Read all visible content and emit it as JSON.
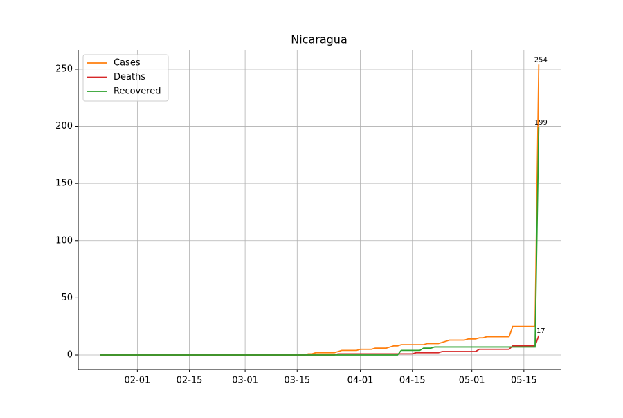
{
  "chart_data": {
    "type": "line",
    "title": "Nicaragua",
    "x": [
      "01-22",
      "01-23",
      "01-24",
      "01-25",
      "01-26",
      "01-27",
      "01-28",
      "01-29",
      "01-30",
      "01-31",
      "02-01",
      "02-02",
      "02-03",
      "02-04",
      "02-05",
      "02-06",
      "02-07",
      "02-08",
      "02-09",
      "02-10",
      "02-11",
      "02-12",
      "02-13",
      "02-14",
      "02-15",
      "02-16",
      "02-17",
      "02-18",
      "02-19",
      "02-20",
      "02-21",
      "02-22",
      "02-23",
      "02-24",
      "02-25",
      "02-26",
      "02-27",
      "02-28",
      "02-29",
      "03-01",
      "03-02",
      "03-03",
      "03-04",
      "03-05",
      "03-06",
      "03-07",
      "03-08",
      "03-09",
      "03-10",
      "03-11",
      "03-12",
      "03-13",
      "03-14",
      "03-15",
      "03-16",
      "03-17",
      "03-18",
      "03-19",
      "03-20",
      "03-21",
      "03-22",
      "03-23",
      "03-24",
      "03-25",
      "03-26",
      "03-27",
      "03-28",
      "03-29",
      "03-30",
      "03-31",
      "04-01",
      "04-02",
      "04-03",
      "04-04",
      "04-05",
      "04-06",
      "04-07",
      "04-08",
      "04-09",
      "04-10",
      "04-11",
      "04-12",
      "04-13",
      "04-14",
      "04-15",
      "04-16",
      "04-17",
      "04-18",
      "04-19",
      "04-20",
      "04-21",
      "04-22",
      "04-23",
      "04-24",
      "04-25",
      "04-26",
      "04-27",
      "04-28",
      "04-29",
      "04-30",
      "05-01",
      "05-02",
      "05-03",
      "05-04",
      "05-05",
      "05-06",
      "05-07",
      "05-08",
      "05-09",
      "05-10",
      "05-11",
      "05-12",
      "05-13",
      "05-14",
      "05-15",
      "05-16",
      "05-17",
      "05-18",
      "05-19"
    ],
    "series": [
      {
        "name": "Cases",
        "color": "#ff7f0e",
        "values": [
          0,
          0,
          0,
          0,
          0,
          0,
          0,
          0,
          0,
          0,
          0,
          0,
          0,
          0,
          0,
          0,
          0,
          0,
          0,
          0,
          0,
          0,
          0,
          0,
          0,
          0,
          0,
          0,
          0,
          0,
          0,
          0,
          0,
          0,
          0,
          0,
          0,
          0,
          0,
          0,
          0,
          0,
          0,
          0,
          0,
          0,
          0,
          0,
          0,
          0,
          0,
          0,
          0,
          0,
          0,
          0,
          1,
          1,
          2,
          2,
          2,
          2,
          2,
          2,
          3,
          4,
          4,
          4,
          4,
          4,
          5,
          5,
          5,
          5,
          6,
          6,
          6,
          6,
          7,
          8,
          8,
          9,
          9,
          9,
          9,
          9,
          9,
          9,
          10,
          10,
          10,
          10,
          11,
          12,
          13,
          13,
          13,
          13,
          13,
          14,
          14,
          14,
          15,
          15,
          16,
          16,
          16,
          16,
          16,
          16,
          16,
          25,
          25,
          25,
          25,
          25,
          25,
          25,
          254
        ]
      },
      {
        "name": "Deaths",
        "color": "#d62728",
        "values": [
          0,
          0,
          0,
          0,
          0,
          0,
          0,
          0,
          0,
          0,
          0,
          0,
          0,
          0,
          0,
          0,
          0,
          0,
          0,
          0,
          0,
          0,
          0,
          0,
          0,
          0,
          0,
          0,
          0,
          0,
          0,
          0,
          0,
          0,
          0,
          0,
          0,
          0,
          0,
          0,
          0,
          0,
          0,
          0,
          0,
          0,
          0,
          0,
          0,
          0,
          0,
          0,
          0,
          0,
          0,
          0,
          0,
          0,
          0,
          0,
          0,
          0,
          0,
          0,
          1,
          1,
          1,
          1,
          1,
          1,
          1,
          1,
          1,
          1,
          1,
          1,
          1,
          1,
          1,
          1,
          1,
          1,
          1,
          1,
          1,
          2,
          2,
          2,
          2,
          2,
          2,
          2,
          3,
          3,
          3,
          3,
          3,
          3,
          3,
          3,
          3,
          3,
          5,
          5,
          5,
          5,
          5,
          5,
          5,
          5,
          5,
          8,
          8,
          8,
          8,
          8,
          8,
          8,
          17
        ]
      },
      {
        "name": "Recovered",
        "color": "#2ca02c",
        "values": [
          0,
          0,
          0,
          0,
          0,
          0,
          0,
          0,
          0,
          0,
          0,
          0,
          0,
          0,
          0,
          0,
          0,
          0,
          0,
          0,
          0,
          0,
          0,
          0,
          0,
          0,
          0,
          0,
          0,
          0,
          0,
          0,
          0,
          0,
          0,
          0,
          0,
          0,
          0,
          0,
          0,
          0,
          0,
          0,
          0,
          0,
          0,
          0,
          0,
          0,
          0,
          0,
          0,
          0,
          0,
          0,
          0,
          0,
          0,
          0,
          0,
          0,
          0,
          0,
          0,
          0,
          0,
          0,
          0,
          0,
          0,
          0,
          0,
          0,
          0,
          0,
          0,
          0,
          0,
          0,
          0,
          4,
          4,
          4,
          4,
          4,
          4,
          6,
          6,
          6,
          7,
          7,
          7,
          7,
          7,
          7,
          7,
          7,
          7,
          7,
          7,
          7,
          7,
          7,
          7,
          7,
          7,
          7,
          7,
          7,
          7,
          7,
          7,
          7,
          7,
          7,
          7,
          7,
          199
        ]
      }
    ],
    "xticks": [
      "02-01",
      "02-15",
      "03-01",
      "03-15",
      "04-01",
      "04-15",
      "05-01",
      "05-15"
    ],
    "ylim": [
      -12.7,
      266.9
    ],
    "yticks": [
      0,
      50,
      100,
      150,
      200,
      250
    ],
    "grid": true,
    "legend": "upper left"
  }
}
